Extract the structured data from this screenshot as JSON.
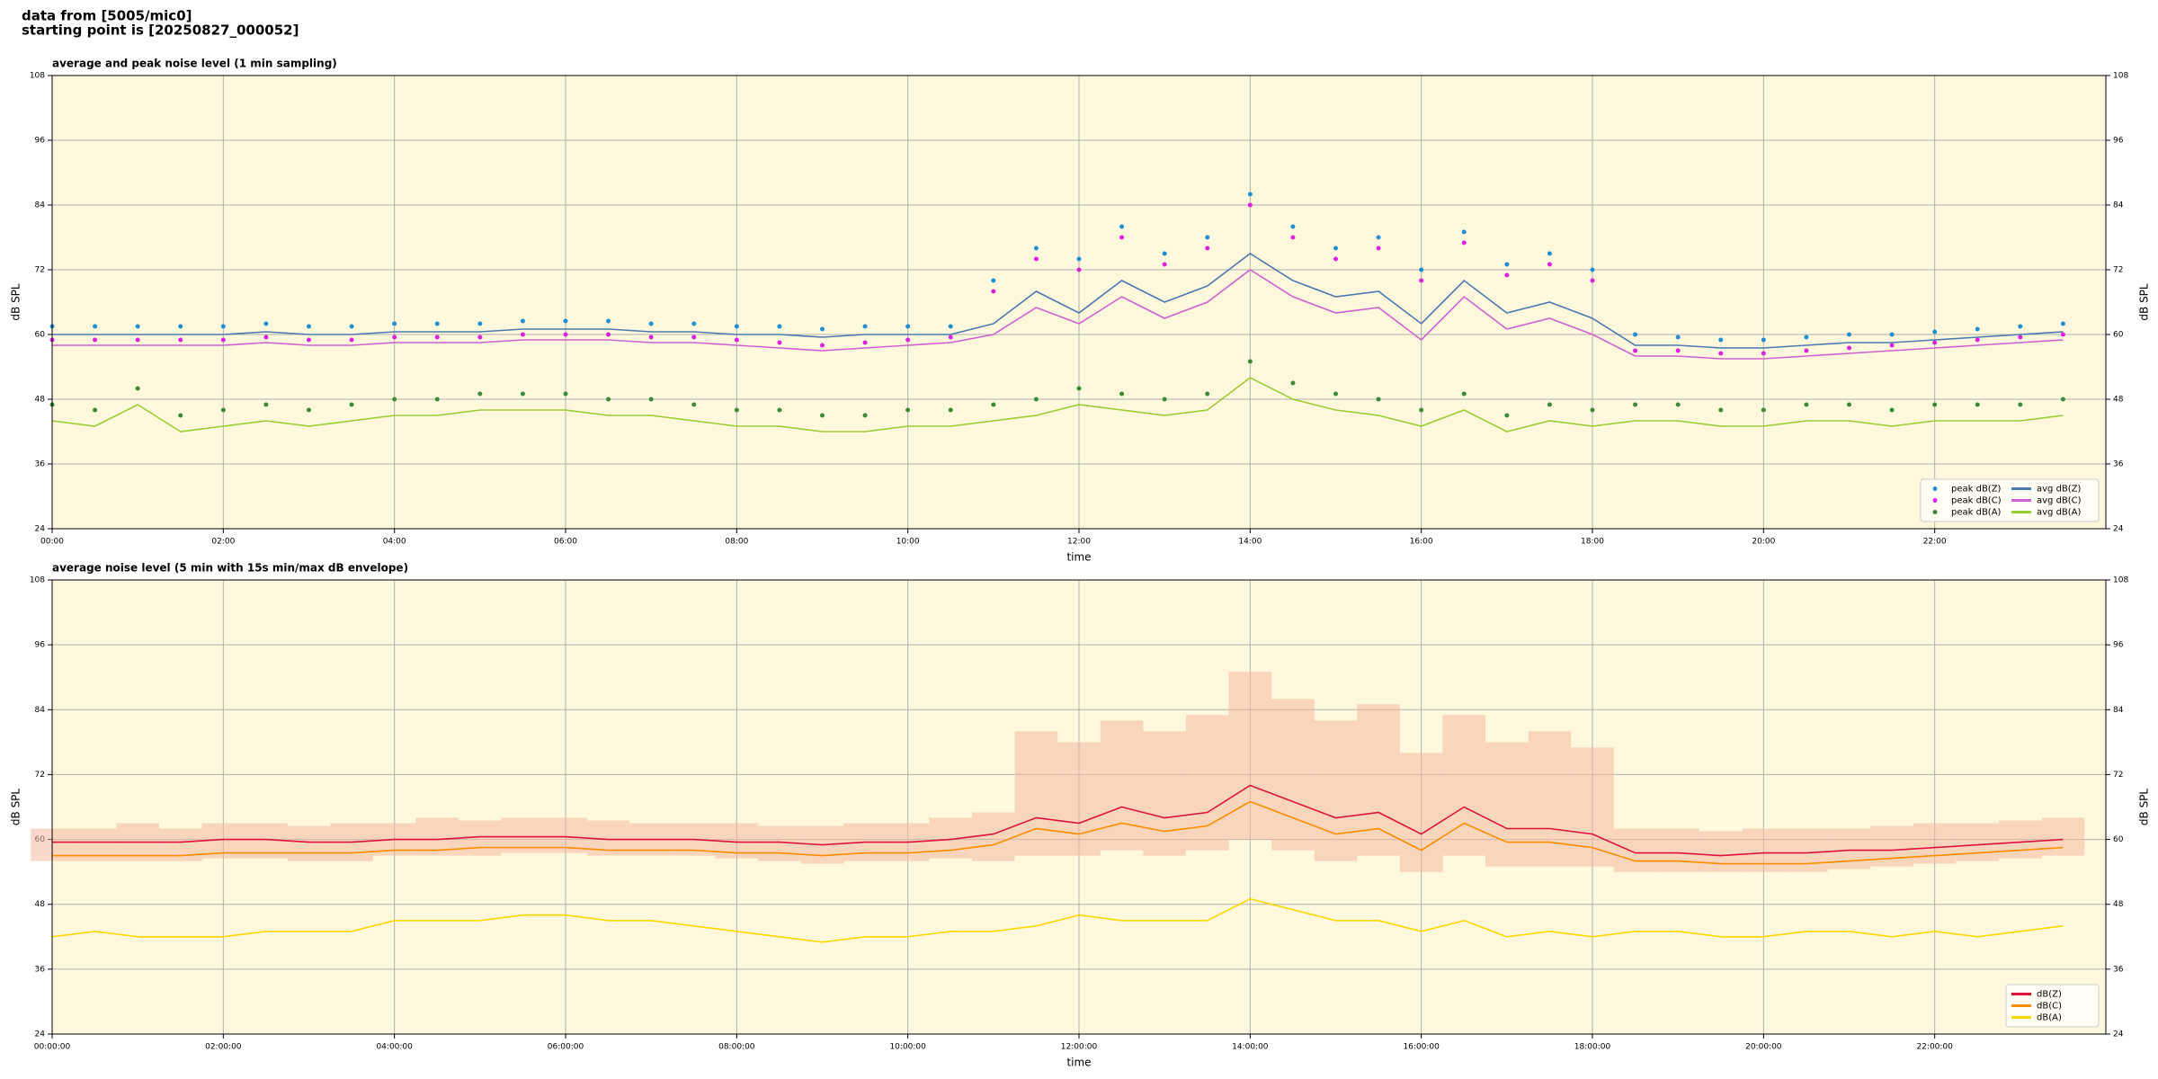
{
  "suptitle": [
    "data from [5005/mic0]",
    "starting point is [20250827_000052]"
  ],
  "chart_data": [
    {
      "type": "line",
      "title": "average and peak noise level (1 min sampling)",
      "xlabel": "time",
      "ylabel": "dB SPL",
      "x": [
        "00:00",
        "00:30",
        "01:00",
        "01:30",
        "02:00",
        "02:30",
        "03:00",
        "03:30",
        "04:00",
        "04:30",
        "05:00",
        "05:30",
        "06:00",
        "06:30",
        "07:00",
        "07:30",
        "08:00",
        "08:30",
        "09:00",
        "09:30",
        "10:00",
        "10:30",
        "11:00",
        "11:30",
        "12:00",
        "12:30",
        "13:00",
        "13:30",
        "14:00",
        "14:30",
        "15:00",
        "15:30",
        "16:00",
        "16:30",
        "17:00",
        "17:30",
        "18:00",
        "18:30",
        "19:00",
        "19:30",
        "20:00",
        "20:30",
        "21:00",
        "21:30",
        "22:00",
        "22:30",
        "23:00",
        "23:30"
      ],
      "xlim": [
        "00:00",
        "24:00"
      ],
      "xticks": [
        "00:00",
        "02:00",
        "04:00",
        "06:00",
        "08:00",
        "10:00",
        "12:00",
        "14:00",
        "16:00",
        "18:00",
        "20:00",
        "22:00"
      ],
      "ylim": [
        24,
        108
      ],
      "yticks": [
        24,
        36,
        48,
        60,
        72,
        84,
        96,
        108
      ],
      "grid": true,
      "background": "#fff8dc",
      "legend": {
        "loc": "lower right",
        "ncol": 2
      },
      "series": [
        {
          "name": "peak dB(Z)",
          "kind": "scatter",
          "color": "#1f8fd0",
          "values": [
            61.5,
            61.5,
            61.5,
            61.5,
            61.5,
            62,
            61.5,
            61.5,
            62,
            62,
            62,
            62.5,
            62.5,
            62.5,
            62,
            62,
            61.5,
            61.5,
            61,
            61.5,
            61.5,
            61.5,
            70,
            76,
            74,
            80,
            75,
            78,
            86,
            80,
            76,
            78,
            72,
            79,
            73,
            75,
            72,
            60,
            59.5,
            59,
            59,
            59.5,
            60,
            60,
            60.5,
            61,
            61.5,
            62
          ]
        },
        {
          "name": "peak dB(C)",
          "kind": "scatter",
          "color": "#e020e0",
          "values": [
            59,
            59,
            59,
            59,
            59,
            59.5,
            59,
            59,
            59.5,
            59.5,
            59.5,
            60,
            60,
            60,
            59.5,
            59.5,
            59,
            58.5,
            58,
            58.5,
            59,
            59.5,
            68,
            74,
            72,
            78,
            73,
            76,
            84,
            78,
            74,
            76,
            70,
            77,
            71,
            73,
            70,
            57,
            57,
            56.5,
            56.5,
            57,
            57.5,
            58,
            58.5,
            59,
            59.5,
            60
          ]
        },
        {
          "name": "peak dB(A)",
          "kind": "scatter",
          "color": "#3a8a3a",
          "values": [
            47,
            46,
            50,
            45,
            46,
            47,
            46,
            47,
            48,
            48,
            49,
            49,
            49,
            48,
            48,
            47,
            46,
            46,
            45,
            45,
            46,
            46,
            47,
            48,
            50,
            49,
            48,
            49,
            55,
            51,
            49,
            48,
            46,
            49,
            45,
            47,
            46,
            47,
            47,
            46,
            46,
            47,
            47,
            46,
            47,
            47,
            47,
            48
          ]
        },
        {
          "name": "avg dB(Z)",
          "kind": "line",
          "color": "#4a7ab0",
          "values": [
            60,
            60,
            60,
            60,
            60,
            60.5,
            60,
            60,
            60.5,
            60.5,
            60.5,
            61,
            61,
            61,
            60.5,
            60.5,
            60,
            60,
            59.5,
            60,
            60,
            60,
            62,
            68,
            64,
            70,
            66,
            69,
            75,
            70,
            67,
            68,
            62,
            70,
            64,
            66,
            63,
            58,
            58,
            57.5,
            57.5,
            58,
            58.5,
            58.5,
            59,
            59.5,
            60,
            60.5
          ]
        },
        {
          "name": "avg dB(C)",
          "kind": "line",
          "color": "#d060d0",
          "values": [
            58,
            58,
            58,
            58,
            58,
            58.5,
            58,
            58,
            58.5,
            58.5,
            58.5,
            59,
            59,
            59,
            58.5,
            58.5,
            58,
            57.5,
            57,
            57.5,
            58,
            58.5,
            60,
            65,
            62,
            67,
            63,
            66,
            72,
            67,
            64,
            65,
            59,
            67,
            61,
            63,
            60,
            56,
            56,
            55.5,
            55.5,
            56,
            56.5,
            57,
            57.5,
            58,
            58.5,
            59
          ]
        },
        {
          "name": "avg dB(A)",
          "kind": "line",
          "color": "#9acd32",
          "values": [
            44,
            43,
            47,
            42,
            43,
            44,
            43,
            44,
            45,
            45,
            46,
            46,
            46,
            45,
            45,
            44,
            43,
            43,
            42,
            42,
            43,
            43,
            44,
            45,
            47,
            46,
            45,
            46,
            52,
            48,
            46,
            45,
            43,
            46,
            42,
            44,
            43,
            44,
            44,
            43,
            43,
            44,
            44,
            43,
            44,
            44,
            44,
            45
          ]
        }
      ]
    },
    {
      "type": "line",
      "title": "average noise level (5 min with 15s min/max dB envelope)",
      "xlabel": "time",
      "ylabel": "dB SPL",
      "x": [
        "00:00:00",
        "00:30:00",
        "01:00:00",
        "01:30:00",
        "02:00:00",
        "02:30:00",
        "03:00:00",
        "03:30:00",
        "04:00:00",
        "04:30:00",
        "05:00:00",
        "05:30:00",
        "06:00:00",
        "06:30:00",
        "07:00:00",
        "07:30:00",
        "08:00:00",
        "08:30:00",
        "09:00:00",
        "09:30:00",
        "10:00:00",
        "10:30:00",
        "11:00:00",
        "11:30:00",
        "12:00:00",
        "12:30:00",
        "13:00:00",
        "13:30:00",
        "14:00:00",
        "14:30:00",
        "15:00:00",
        "15:30:00",
        "16:00:00",
        "16:30:00",
        "17:00:00",
        "17:30:00",
        "18:00:00",
        "18:30:00",
        "19:00:00",
        "19:30:00",
        "20:00:00",
        "20:30:00",
        "21:00:00",
        "21:30:00",
        "22:00:00",
        "22:30:00",
        "23:00:00",
        "23:30:00"
      ],
      "xlim": [
        "00:00:00",
        "24:00:00"
      ],
      "xticks": [
        "00:00:00",
        "02:00:00",
        "04:00:00",
        "06:00:00",
        "08:00:00",
        "10:00:00",
        "12:00:00",
        "14:00:00",
        "16:00:00",
        "18:00:00",
        "20:00:00",
        "22:00:00"
      ],
      "ylim": [
        24,
        108
      ],
      "yticks": [
        24,
        36,
        48,
        60,
        72,
        84,
        96,
        108
      ],
      "grid": true,
      "background": "#fff8dc",
      "legend": {
        "loc": "lower right",
        "ncol": 1
      },
      "band": {
        "color": "#f4b8a0",
        "low": [
          56,
          56,
          56,
          56,
          56.5,
          56.5,
          56,
          56,
          57,
          57,
          57,
          57.5,
          57.5,
          57,
          57,
          57,
          56.5,
          56,
          55.5,
          56,
          56,
          56.5,
          56,
          57,
          57,
          58,
          57,
          58,
          60,
          58,
          56,
          57,
          54,
          57,
          55,
          55,
          55,
          54,
          54,
          54,
          54,
          54,
          54.5,
          55,
          55.5,
          56,
          56.5,
          57
        ],
        "high": [
          62,
          62,
          63,
          62,
          63,
          63,
          62.5,
          63,
          63,
          64,
          63.5,
          64,
          64,
          63.5,
          63,
          63,
          63,
          62.5,
          62.5,
          63,
          63,
          64,
          65,
          80,
          78,
          82,
          80,
          83,
          91,
          86,
          82,
          85,
          76,
          83,
          78,
          80,
          77,
          62,
          62,
          61.5,
          62,
          62,
          62,
          62.5,
          63,
          63,
          63.5,
          64
        ]
      },
      "series": [
        {
          "name": "dB(Z)",
          "kind": "line",
          "color": "#dc143c",
          "values": [
            59.5,
            59.5,
            59.5,
            59.5,
            60,
            60,
            59.5,
            59.5,
            60,
            60,
            60.5,
            60.5,
            60.5,
            60,
            60,
            60,
            59.5,
            59.5,
            59,
            59.5,
            59.5,
            60,
            61,
            64,
            63,
            66,
            64,
            65,
            70,
            67,
            64,
            65,
            61,
            66,
            62,
            62,
            61,
            57.5,
            57.5,
            57,
            57.5,
            57.5,
            58,
            58,
            58.5,
            59,
            59.5,
            60
          ]
        },
        {
          "name": "dB(C)",
          "kind": "line",
          "color": "#ff8c00",
          "values": [
            57,
            57,
            57,
            57,
            57.5,
            57.5,
            57.5,
            57.5,
            58,
            58,
            58.5,
            58.5,
            58.5,
            58,
            58,
            58,
            57.5,
            57.5,
            57,
            57.5,
            57.5,
            58,
            59,
            62,
            61,
            63,
            61.5,
            62.5,
            67,
            64,
            61,
            62,
            58,
            63,
            59.5,
            59.5,
            58.5,
            56,
            56,
            55.5,
            55.5,
            55.5,
            56,
            56.5,
            57,
            57.5,
            58,
            58.5
          ]
        },
        {
          "name": "dB(A)",
          "kind": "line",
          "color": "#ffd700",
          "values": [
            42,
            43,
            42,
            42,
            42,
            43,
            43,
            43,
            45,
            45,
            45,
            46,
            46,
            45,
            45,
            44,
            43,
            42,
            41,
            42,
            42,
            43,
            43,
            44,
            46,
            45,
            45,
            45,
            49,
            47,
            45,
            45,
            43,
            45,
            42,
            43,
            42,
            43,
            43,
            42,
            42,
            43,
            43,
            42,
            43,
            42,
            43,
            44
          ]
        }
      ]
    }
  ]
}
